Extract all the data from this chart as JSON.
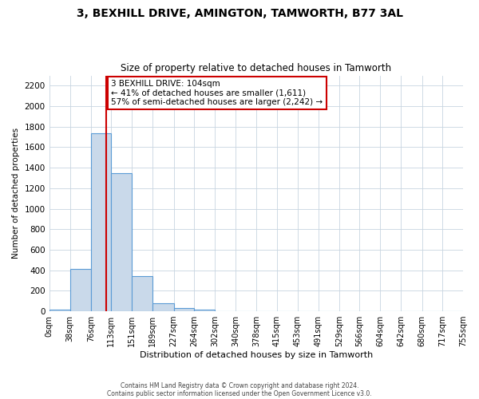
{
  "title": "3, BEXHILL DRIVE, AMINGTON, TAMWORTH, B77 3AL",
  "subtitle": "Size of property relative to detached houses in Tamworth",
  "xlabel": "Distribution of detached houses by size in Tamworth",
  "ylabel": "Number of detached properties",
  "bar_color": "#c9d9ea",
  "bar_edge_color": "#5b9bd5",
  "bin_edges": [
    0,
    38,
    76,
    113,
    151,
    189,
    227,
    264,
    302,
    340,
    378,
    415,
    453,
    491,
    529,
    566,
    604,
    642,
    680,
    717,
    755
  ],
  "bin_labels": [
    "0sqm",
    "38sqm",
    "76sqm",
    "113sqm",
    "151sqm",
    "189sqm",
    "227sqm",
    "264sqm",
    "302sqm",
    "340sqm",
    "378sqm",
    "415sqm",
    "453sqm",
    "491sqm",
    "529sqm",
    "566sqm",
    "604sqm",
    "642sqm",
    "680sqm",
    "717sqm",
    "755sqm"
  ],
  "bar_heights": [
    20,
    410,
    1740,
    1350,
    340,
    80,
    30,
    20,
    0,
    0,
    0,
    0,
    0,
    0,
    0,
    0,
    0,
    0,
    0,
    0
  ],
  "property_line_x": 104,
  "property_line_color": "#cc0000",
  "annotation_text": "3 BEXHILL DRIVE: 104sqm\n← 41% of detached houses are smaller (1,611)\n57% of semi-detached houses are larger (2,242) →",
  "annotation_box_edge": "#cc0000",
  "ylim": [
    0,
    2300
  ],
  "yticks": [
    0,
    200,
    400,
    600,
    800,
    1000,
    1200,
    1400,
    1600,
    1800,
    2000,
    2200
  ],
  "footer1": "Contains HM Land Registry data © Crown copyright and database right 2024.",
  "footer2": "Contains public sector information licensed under the Open Government Licence v3.0.",
  "background_color": "#ffffff",
  "grid_color": "#c8d4e0",
  "title_fontsize": 10,
  "subtitle_fontsize": 8.5,
  "xlabel_fontsize": 8,
  "ylabel_fontsize": 7.5,
  "tick_fontsize": 7,
  "ytick_fontsize": 7.5,
  "footer_fontsize": 5.5,
  "annot_fontsize": 7.5
}
